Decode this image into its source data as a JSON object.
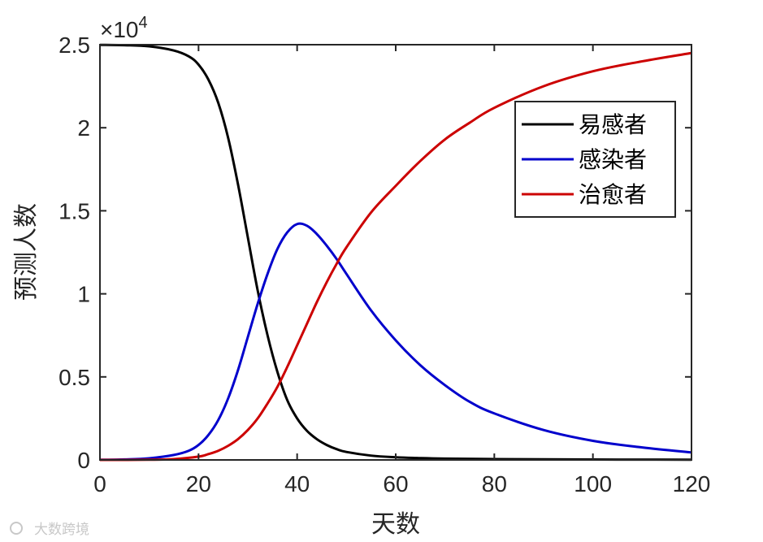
{
  "chart_data": {
    "type": "line",
    "xlabel": "天数",
    "ylabel": "预测人数",
    "xlim": [
      0,
      120
    ],
    "ylim": [
      0,
      25000
    ],
    "x_ticks": [
      0,
      20,
      40,
      60,
      80,
      100,
      120
    ],
    "y_ticks": [
      0,
      5000,
      10000,
      15000,
      20000,
      25000
    ],
    "y_tick_labels": [
      "0",
      "0.5",
      "1",
      "1.5",
      "2",
      "2.5"
    ],
    "y_multiplier_base": "×10",
    "y_multiplier_exp": "4",
    "grid": false,
    "legend_position": "top-right",
    "series": [
      {
        "name": "易感者",
        "color": "#000000",
        "x": [
          0,
          5,
          10,
          15,
          18,
          20,
          22,
          24,
          26,
          28,
          30,
          32,
          34,
          36,
          38,
          40,
          42,
          44,
          46,
          48,
          50,
          55,
          60,
          65,
          70,
          80,
          90,
          100,
          110,
          120
        ],
        "y": [
          24990,
          24970,
          24900,
          24650,
          24300,
          23800,
          22900,
          21500,
          19400,
          16600,
          13400,
          10200,
          7500,
          5300,
          3600,
          2500,
          1750,
          1250,
          900,
          650,
          480,
          260,
          160,
          110,
          80,
          50,
          35,
          25,
          18,
          12
        ]
      },
      {
        "name": "感染者",
        "color": "#0000cc",
        "x": [
          0,
          5,
          10,
          15,
          18,
          20,
          22,
          24,
          26,
          28,
          30,
          32,
          34,
          36,
          38,
          40,
          42,
          44,
          46,
          48,
          50,
          55,
          60,
          65,
          70,
          75,
          80,
          90,
          100,
          110,
          120
        ],
        "y": [
          10,
          30,
          100,
          300,
          550,
          900,
          1500,
          2400,
          3700,
          5400,
          7400,
          9400,
          11200,
          12700,
          13700,
          14200,
          14100,
          13600,
          12900,
          12100,
          11200,
          9000,
          7200,
          5700,
          4500,
          3500,
          2800,
          1800,
          1150,
          750,
          450
        ]
      },
      {
        "name": "治愈者",
        "color": "#cc0000",
        "x": [
          0,
          10,
          15,
          20,
          22,
          24,
          26,
          28,
          30,
          32,
          34,
          36,
          38,
          40,
          42,
          44,
          46,
          48,
          50,
          55,
          60,
          65,
          70,
          75,
          80,
          90,
          100,
          110,
          120
        ],
        "y": [
          0,
          10,
          50,
          200,
          350,
          550,
          850,
          1250,
          1800,
          2500,
          3400,
          4400,
          5600,
          6900,
          8200,
          9500,
          10700,
          11800,
          12800,
          14900,
          16500,
          18000,
          19300,
          20300,
          21200,
          22500,
          23400,
          24000,
          24500
        ]
      }
    ]
  },
  "watermark": "大数跨境"
}
